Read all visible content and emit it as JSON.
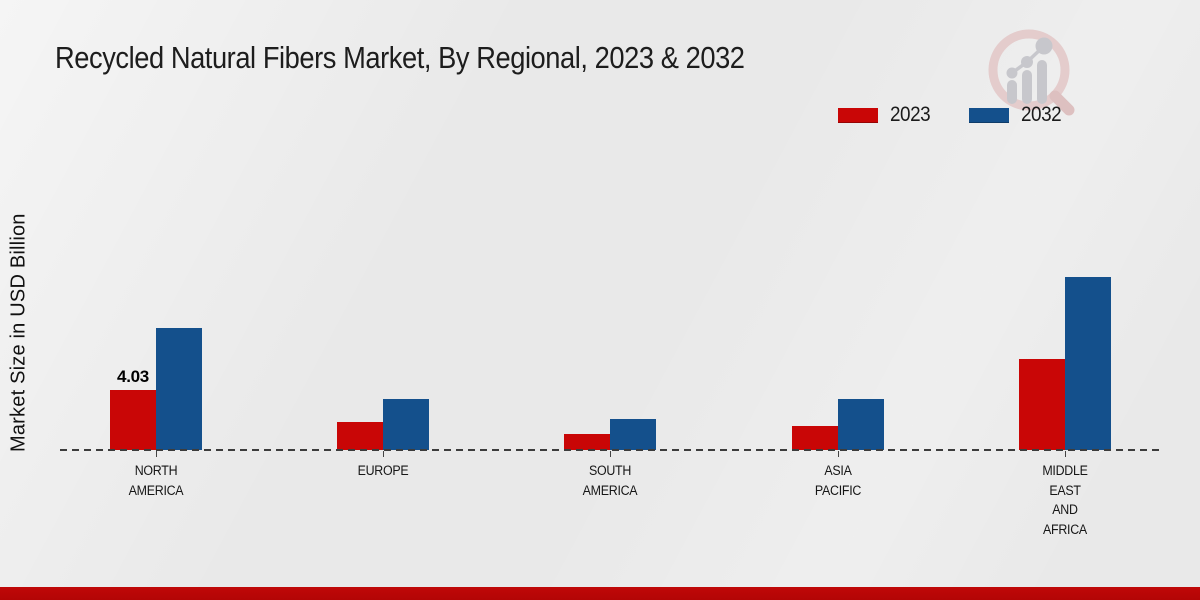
{
  "page": {
    "title": "Recycled Natural Fibers Market, By Regional, 2023 & 2032"
  },
  "y_axis": {
    "label": "Market Size in USD Billion"
  },
  "legend": [
    {
      "label": "2023",
      "color": "#c90606"
    },
    {
      "label": "2032",
      "color": "#14508c"
    }
  ],
  "logo": {
    "name": "magnifier-bar-chart-logo"
  },
  "colors": {
    "bar_2023": "#c90606",
    "bar_2032": "#14508c",
    "footer_band": "#b30505",
    "baseline": "#3c3c3c",
    "background": "#e9e9e9"
  },
  "chart_data": {
    "type": "bar",
    "title": "Recycled Natural Fibers Market, By Regional, 2023 & 2032",
    "xlabel": "",
    "ylabel": "Market Size in USD Billion",
    "categories": [
      "NORTH AMERICA",
      "EUROPE",
      "SOUTH AMERICA",
      "ASIA PACIFIC",
      "MIDDLE EAST AND AFRICA"
    ],
    "category_label_lines": [
      [
        "NORTH",
        "AMERICA"
      ],
      [
        "EUROPE"
      ],
      [
        "SOUTH",
        "AMERICA"
      ],
      [
        "ASIA",
        "PACIFIC"
      ],
      [
        "MIDDLE",
        "EAST",
        "AND",
        "AFRICA"
      ]
    ],
    "series": [
      {
        "name": "2023",
        "color": "#c90606",
        "values": [
          4.03,
          1.9,
          1.1,
          1.6,
          6.1
        ]
      },
      {
        "name": "2032",
        "color": "#14508c",
        "values": [
          8.2,
          3.4,
          2.1,
          3.4,
          11.6
        ]
      }
    ],
    "data_labels": [
      {
        "series": "2023",
        "category_index": 0,
        "text": "4.03"
      }
    ],
    "legend_position": "top-right",
    "grid": false,
    "baseline_style": "dashed",
    "units": "USD Billion"
  }
}
